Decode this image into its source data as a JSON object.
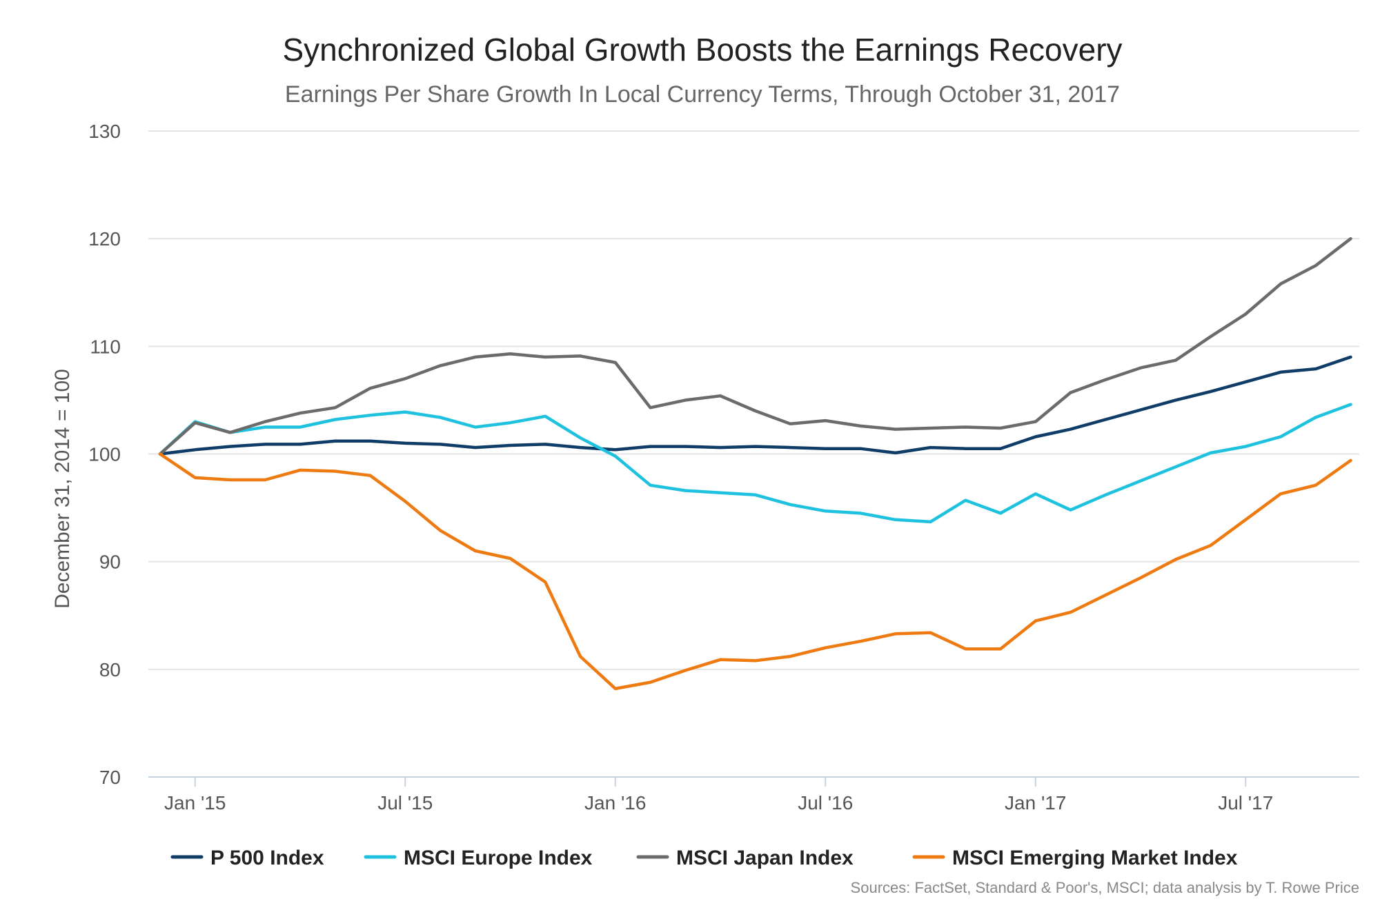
{
  "chart_data": {
    "type": "line",
    "title": "Synchronized Global Growth Boosts the Earnings Recovery",
    "subtitle": "Earnings Per Share Growth In Local Currency Terms, Through October 31, 2017",
    "ylabel": "December 31, 2014 = 100",
    "xlabel": "",
    "ylim": [
      70,
      130
    ],
    "y_ticks": [
      "130",
      "120",
      "110",
      "100",
      "90",
      "80",
      "70"
    ],
    "x_tick_labels": [
      "Jan '15",
      "Jul '15",
      "Jan '16",
      "Jul '16",
      "Jan '17",
      "Jul '17"
    ],
    "x": [
      "2014-12",
      "2015-01",
      "2015-02",
      "2015-03",
      "2015-04",
      "2015-05",
      "2015-06",
      "2015-07",
      "2015-08",
      "2015-09",
      "2015-10",
      "2015-11",
      "2015-12",
      "2016-01",
      "2016-02",
      "2016-03",
      "2016-04",
      "2016-05",
      "2016-06",
      "2016-07",
      "2016-08",
      "2016-09",
      "2016-10",
      "2016-11",
      "2016-12",
      "2017-01",
      "2017-02",
      "2017-03",
      "2017-04",
      "2017-05",
      "2017-06",
      "2017-07",
      "2017-08",
      "2017-09",
      "2017-10"
    ],
    "grid": "horizontal",
    "legend_position": "bottom",
    "series": [
      {
        "name": "P 500 Index",
        "color": "#0f3d68",
        "values": [
          100.0,
          100.4,
          100.7,
          100.9,
          100.9,
          101.2,
          101.2,
          101.0,
          100.9,
          100.6,
          100.8,
          100.9,
          100.6,
          100.4,
          100.7,
          100.7,
          100.6,
          100.7,
          100.6,
          100.5,
          100.5,
          100.1,
          100.6,
          100.5,
          100.5,
          101.6,
          102.3,
          103.2,
          104.1,
          105.0,
          105.8,
          106.7,
          107.6,
          107.9,
          109.0
        ]
      },
      {
        "name": "MSCI Europe Index",
        "color": "#1ec2de",
        "values": [
          100.0,
          103.0,
          102.0,
          102.5,
          102.5,
          103.2,
          103.6,
          103.9,
          103.4,
          102.5,
          102.9,
          103.5,
          101.5,
          99.8,
          97.1,
          96.6,
          96.4,
          96.2,
          95.3,
          94.7,
          94.5,
          93.9,
          93.7,
          95.7,
          94.5,
          96.3,
          94.8,
          96.2,
          97.5,
          98.8,
          100.1,
          100.7,
          101.6,
          103.4,
          104.6
        ]
      },
      {
        "name": "MSCI Japan Index",
        "color": "#6b6b6b",
        "values": [
          100.0,
          102.9,
          102.0,
          103.0,
          103.8,
          104.3,
          106.1,
          107.0,
          108.2,
          109.0,
          109.3,
          109.0,
          109.1,
          108.5,
          104.3,
          105.0,
          105.4,
          104.0,
          102.8,
          103.1,
          102.6,
          102.3,
          102.4,
          102.5,
          102.4,
          103.0,
          105.7,
          106.9,
          108.0,
          108.7,
          110.9,
          113.0,
          115.8,
          117.5,
          120.0
        ]
      },
      {
        "name": "MSCI Emerging Market Index",
        "color": "#ee7a12",
        "values": [
          100.0,
          97.8,
          97.6,
          97.6,
          98.5,
          98.4,
          98.0,
          95.6,
          92.9,
          91.0,
          90.3,
          88.1,
          81.2,
          78.2,
          78.8,
          79.9,
          80.9,
          80.8,
          81.2,
          82.0,
          82.6,
          83.3,
          83.4,
          81.9,
          81.9,
          84.5,
          85.3,
          86.9,
          88.5,
          90.2,
          91.5,
          93.9,
          96.3,
          97.1,
          99.4
        ]
      }
    ],
    "source_note": "Sources: FactSet, Standard & Poor's, MSCI; data analysis by T. Rowe Price"
  }
}
